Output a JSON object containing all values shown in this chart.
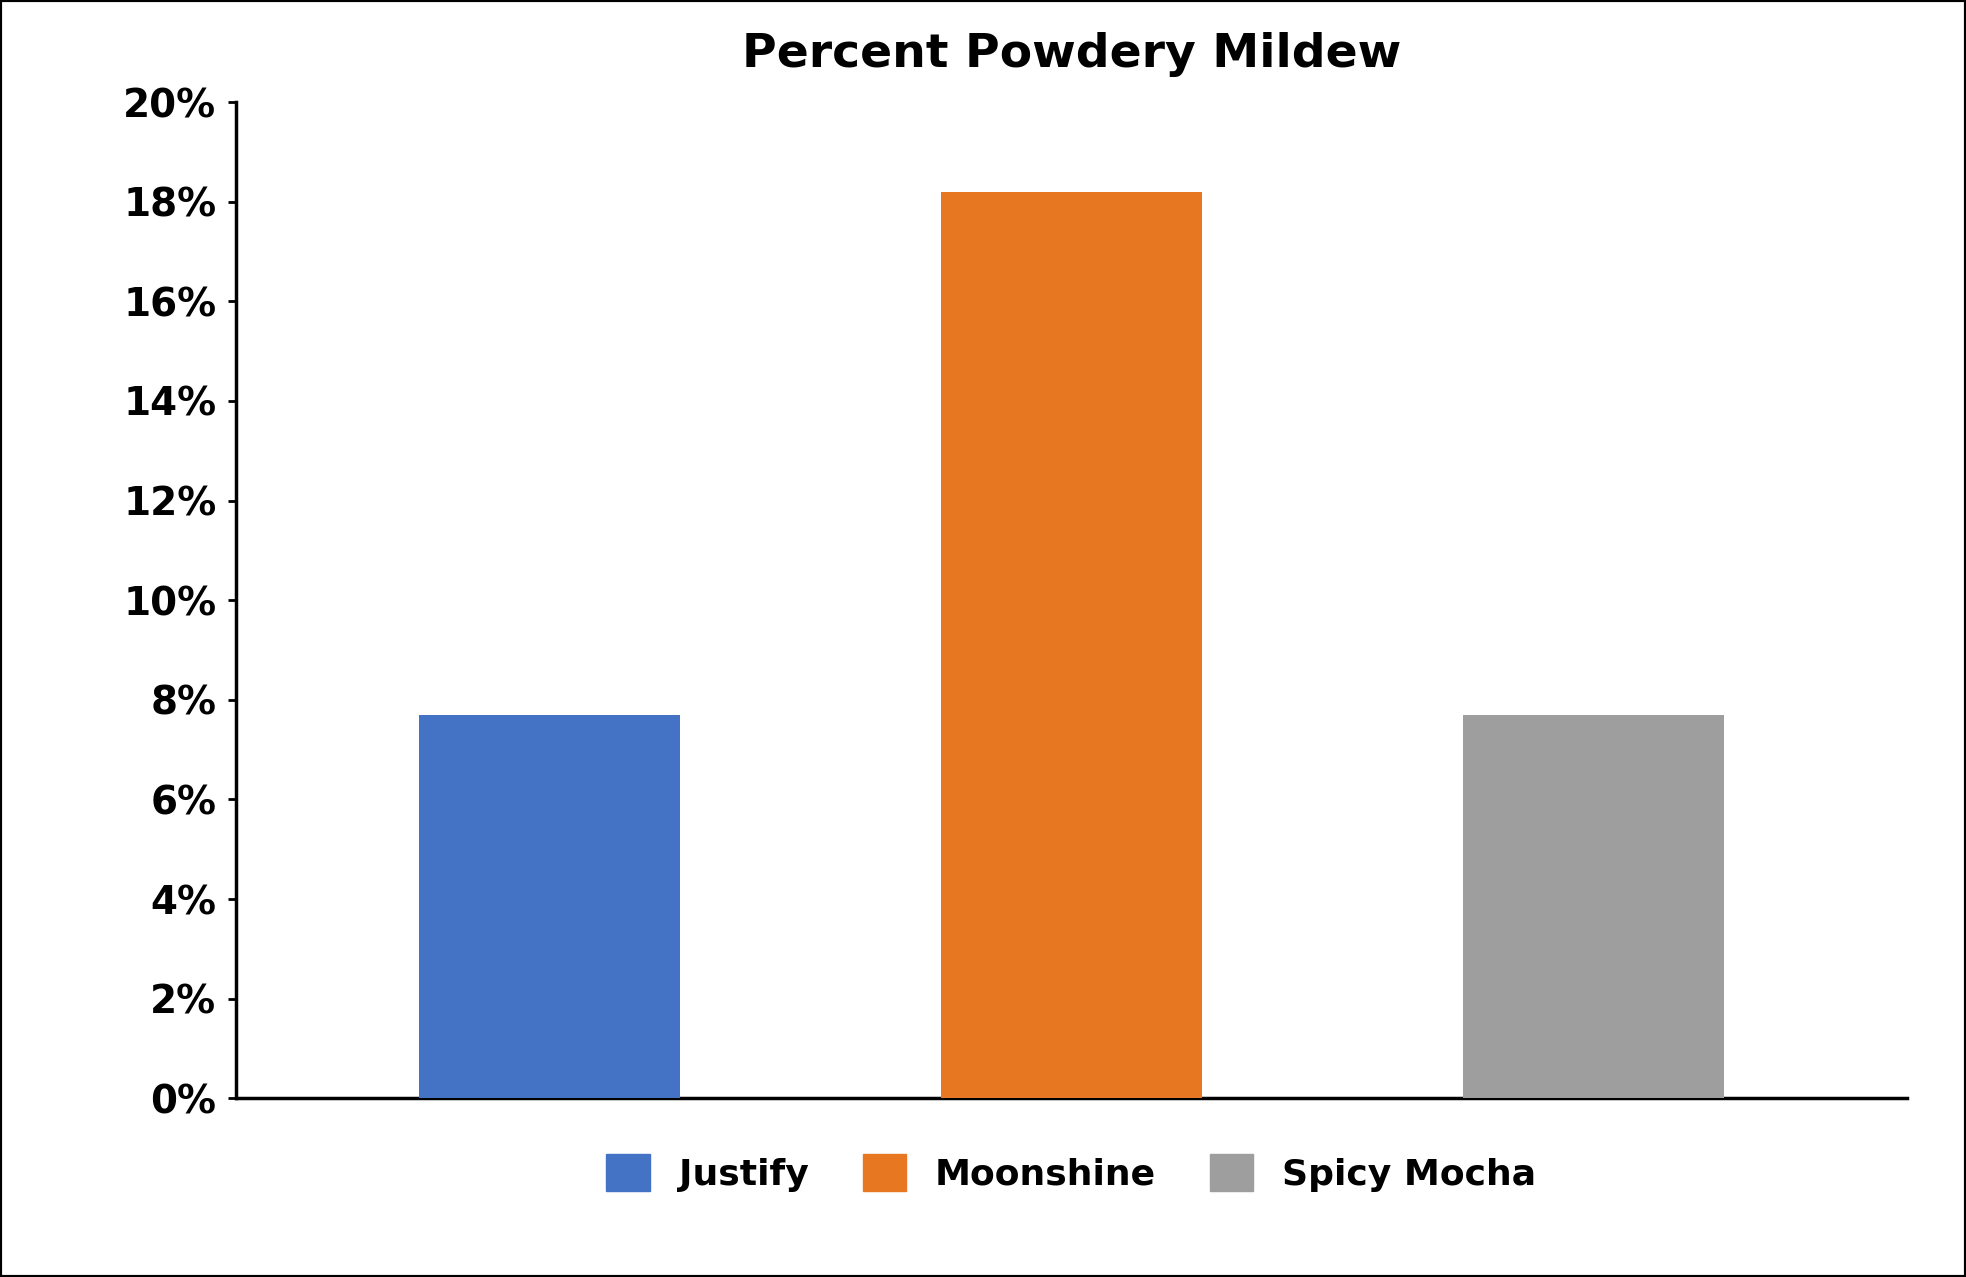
{
  "title": "Percent Powdery Mildew",
  "categories": [
    "Justify",
    "Moonshine",
    "Spicy Mocha"
  ],
  "values": [
    0.077,
    0.182,
    0.077
  ],
  "bar_colors": [
    "#4472C4",
    "#E87722",
    "#9E9E9E"
  ],
  "ylim": [
    0,
    0.2
  ],
  "yticks": [
    0.0,
    0.02,
    0.04,
    0.06,
    0.08,
    0.1,
    0.12,
    0.14,
    0.16,
    0.18,
    0.2
  ],
  "ytick_labels": [
    "0%",
    "2%",
    "4%",
    "6%",
    "8%",
    "10%",
    "12%",
    "14%",
    "16%",
    "18%",
    "20%"
  ],
  "title_fontsize": 34,
  "tick_fontsize": 28,
  "legend_fontsize": 26,
  "background_color": "#ffffff",
  "bar_width": 0.5,
  "legend_labels": [
    "Justify",
    "Moonshine",
    "Spicy Mocha"
  ],
  "outer_border_linewidth": 3.0,
  "spine_linewidth": 2.5
}
